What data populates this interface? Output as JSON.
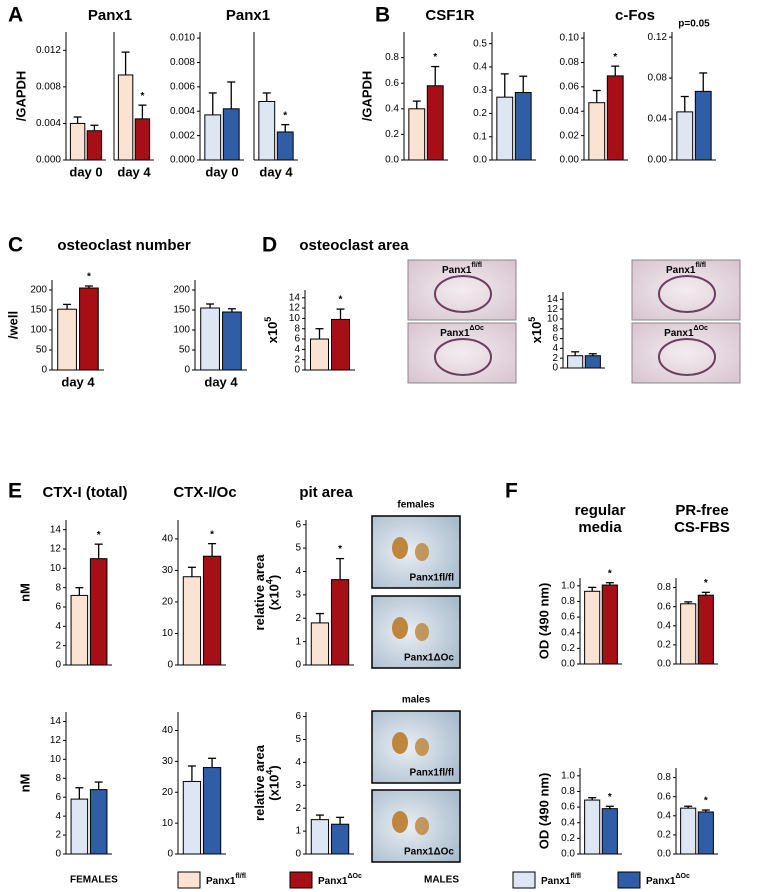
{
  "panel_labels": [
    "A",
    "B",
    "C",
    "D",
    "E",
    "F"
  ],
  "chart_data": [
    {
      "type": "bar",
      "title": "Panx1",
      "ylabel": "/GAPDH",
      "categories": [
        "day 0"
      ],
      "ylim": [
        0,
        0.014
      ],
      "yticks": [
        {
          "value": 0,
          "label": "0.000"
        },
        {
          "value": 0.004,
          "label": "0.004"
        },
        {
          "value": 0.008,
          "label": "0.008"
        },
        {
          "value": 0.012,
          "label": "0.012"
        }
      ],
      "series": [
        {
          "color": "#fbe3d3",
          "values": [
            0.004
          ],
          "errors": [
            0.0007
          ]
        },
        {
          "color": "#a50f15",
          "values": [
            0.0032
          ],
          "errors": [
            0.0006
          ]
        }
      ]
    },
    {
      "type": "bar",
      "categories": [
        "day 4"
      ],
      "ylim": [
        0,
        0.014
      ],
      "annotation": "*",
      "series": [
        {
          "color": "#fbe3d3",
          "values": [
            0.0093
          ],
          "errors": [
            0.0025
          ]
        },
        {
          "color": "#a50f15",
          "values": [
            0.0045
          ],
          "errors": [
            0.0015
          ]
        }
      ]
    },
    {
      "type": "bar",
      "title": "Panx1",
      "categories": [
        "day 0"
      ],
      "ylim": [
        0,
        0.0105
      ],
      "yticks": [
        {
          "value": 0,
          "label": "0.000"
        },
        {
          "value": 0.002,
          "label": "0.002"
        },
        {
          "value": 0.004,
          "label": "0.004"
        },
        {
          "value": 0.006,
          "label": "0.006"
        },
        {
          "value": 0.008,
          "label": "0.008"
        },
        {
          "value": 0.01,
          "label": "0.010"
        }
      ],
      "series": [
        {
          "color": "#dde6f2",
          "values": [
            0.0037
          ],
          "errors": [
            0.0018
          ]
        },
        {
          "color": "#2f5ea6",
          "values": [
            0.0042
          ],
          "errors": [
            0.0022
          ]
        }
      ]
    },
    {
      "type": "bar",
      "categories": [
        "day 4"
      ],
      "ylim": [
        0,
        0.0105
      ],
      "annotation": "*",
      "series": [
        {
          "color": "#dde6f2",
          "values": [
            0.0048
          ],
          "errors": [
            0.0007
          ]
        },
        {
          "color": "#2f5ea6",
          "values": [
            0.0023
          ],
          "errors": [
            0.0006
          ]
        }
      ]
    },
    {
      "type": "bar",
      "title": "CSF1R",
      "ylabel": "/GAPDH",
      "ylim": [
        0,
        1.0
      ],
      "yticks": [
        {
          "value": 0,
          "label": "0.0"
        },
        {
          "value": 0.2,
          "label": "0.2"
        },
        {
          "value": 0.4,
          "label": "0.4"
        },
        {
          "value": 0.6,
          "label": "0.6"
        },
        {
          "value": 0.8,
          "label": "0.8"
        }
      ],
      "annotation": "*",
      "series": [
        {
          "color": "#fbe3d3",
          "values": [
            0.4
          ],
          "errors": [
            0.06
          ]
        },
        {
          "color": "#a50f15",
          "values": [
            0.58
          ],
          "errors": [
            0.15
          ]
        }
      ]
    },
    {
      "type": "bar",
      "ylim": [
        0,
        0.55
      ],
      "yticks": [
        {
          "value": 0,
          "label": "0.0"
        },
        {
          "value": 0.1,
          "label": "0.1"
        },
        {
          "value": 0.2,
          "label": "0.2"
        },
        {
          "value": 0.3,
          "label": "0.3"
        },
        {
          "value": 0.4,
          "label": "0.4"
        },
        {
          "value": 0.5,
          "label": "0.5"
        }
      ],
      "series": [
        {
          "color": "#dde6f2",
          "values": [
            0.27
          ],
          "errors": [
            0.1
          ]
        },
        {
          "color": "#2f5ea6",
          "values": [
            0.29
          ],
          "errors": [
            0.07
          ]
        }
      ]
    },
    {
      "type": "bar",
      "title": "c-Fos",
      "ylim": [
        0,
        0.105
      ],
      "yticks": [
        {
          "value": 0,
          "label": "0.00"
        },
        {
          "value": 0.02,
          "label": "0.02"
        },
        {
          "value": 0.04,
          "label": "0.04"
        },
        {
          "value": 0.06,
          "label": "0.06"
        },
        {
          "value": 0.08,
          "label": "0.08"
        },
        {
          "value": 0.1,
          "label": "0.10"
        }
      ],
      "annotation": "*",
      "series": [
        {
          "color": "#fbe3d3",
          "values": [
            0.047
          ],
          "errors": [
            0.01
          ]
        },
        {
          "color": "#a50f15",
          "values": [
            0.069
          ],
          "errors": [
            0.008
          ]
        }
      ]
    },
    {
      "type": "bar",
      "ylim": [
        0,
        0.125
      ],
      "yticks": [
        {
          "value": 0,
          "label": "0.00"
        },
        {
          "value": 0.04,
          "label": "0.04"
        },
        {
          "value": 0.08,
          "label": "0.08"
        },
        {
          "value": 0.12,
          "label": "0.12"
        }
      ],
      "annotation": "p=0.05",
      "series": [
        {
          "color": "#dde6f2",
          "values": [
            0.047
          ],
          "errors": [
            0.015
          ]
        },
        {
          "color": "#2f5ea6",
          "values": [
            0.067
          ],
          "errors": [
            0.018
          ]
        }
      ]
    },
    {
      "type": "bar",
      "title": "osteoclast number",
      "ylabel": "/well",
      "categories": [
        "day 4"
      ],
      "ylim": [
        0,
        225
      ],
      "yticks": [
        0,
        50,
        100,
        150,
        200
      ],
      "annotation": "*",
      "series": [
        {
          "color": "#fbe3d3",
          "values": [
            152
          ],
          "errors": [
            12
          ]
        },
        {
          "color": "#a50f15",
          "values": [
            205
          ],
          "errors": [
            5
          ]
        }
      ]
    },
    {
      "type": "bar",
      "categories": [
        "day 4"
      ],
      "ylim": [
        0,
        225
      ],
      "yticks": [
        0,
        50,
        100,
        150,
        200
      ],
      "series": [
        {
          "color": "#dde6f2",
          "values": [
            155
          ],
          "errors": [
            10
          ]
        },
        {
          "color": "#2f5ea6",
          "values": [
            145
          ],
          "errors": [
            8
          ]
        }
      ]
    },
    {
      "type": "bar",
      "title": "osteoclast area",
      "ylabel": {
        "text": "x10",
        "sup": "5"
      },
      "ylim": [
        0,
        15.5
      ],
      "yticks": [
        0,
        2,
        4,
        6,
        8,
        10,
        12,
        14
      ],
      "annotation": "*",
      "series": [
        {
          "color": "#fbe3d3",
          "values": [
            6
          ],
          "errors": [
            2
          ]
        },
        {
          "color": "#a50f15",
          "values": [
            9.8
          ],
          "errors": [
            2
          ]
        }
      ]
    },
    {
      "type": "bar",
      "ylabel": {
        "text": "x10",
        "sup": "5"
      },
      "ylim": [
        0,
        15.5
      ],
      "yticks": [
        0,
        2,
        4,
        6,
        8,
        10,
        12,
        14
      ],
      "series": [
        {
          "color": "#dde6f2",
          "values": [
            2.5
          ],
          "errors": [
            0.8
          ]
        },
        {
          "color": "#2f5ea6",
          "values": [
            2.5
          ],
          "errors": [
            0.4
          ]
        }
      ]
    },
    {
      "type": "bar",
      "title": "CTX-I (total)",
      "ylabel": "nM",
      "ylim": [
        0,
        15
      ],
      "yticks": [
        0,
        2,
        4,
        6,
        8,
        10,
        12,
        14
      ],
      "annotation": "*",
      "series": [
        {
          "color": "#fbe3d3",
          "values": [
            7.2
          ],
          "errors": [
            0.8
          ]
        },
        {
          "color": "#a50f15",
          "values": [
            11
          ],
          "errors": [
            1.5
          ]
        }
      ]
    },
    {
      "type": "bar",
      "title": "CTX-I/Oc",
      "ylim": [
        0,
        46
      ],
      "yticks": [
        0,
        10,
        20,
        30,
        40
      ],
      "annotation": "*",
      "series": [
        {
          "color": "#fbe3d3",
          "values": [
            28
          ],
          "errors": [
            3
          ]
        },
        {
          "color": "#a50f15",
          "values": [
            34.5
          ],
          "errors": [
            4
          ]
        }
      ]
    },
    {
      "type": "bar",
      "title": "pit area",
      "ylabel": [
        "relative area",
        {
          "text": "(x10",
          "sup": "4",
          "tail": ")"
        }
      ],
      "ylim": [
        0,
        6.2
      ],
      "yticks": [
        0,
        1,
        2,
        3,
        4,
        5,
        6
      ],
      "annotation": "*",
      "series": [
        {
          "color": "#fbe3d3",
          "values": [
            1.8
          ],
          "errors": [
            0.4
          ]
        },
        {
          "color": "#a50f15",
          "values": [
            3.65
          ],
          "errors": [
            0.9
          ]
        }
      ]
    },
    {
      "type": "bar",
      "ylabel": "nM",
      "ylim": [
        0,
        15
      ],
      "yticks": [
        0,
        2,
        4,
        6,
        8,
        10,
        12,
        14
      ],
      "series": [
        {
          "color": "#dde6f2",
          "values": [
            5.8
          ],
          "errors": [
            1.2
          ]
        },
        {
          "color": "#2f5ea6",
          "values": [
            6.8
          ],
          "errors": [
            0.8
          ]
        }
      ]
    },
    {
      "type": "bar",
      "ylim": [
        0,
        46
      ],
      "yticks": [
        0,
        10,
        20,
        30,
        40
      ],
      "series": [
        {
          "color": "#dde6f2",
          "values": [
            23.5
          ],
          "errors": [
            5
          ]
        },
        {
          "color": "#2f5ea6",
          "values": [
            28
          ],
          "errors": [
            3
          ]
        }
      ]
    },
    {
      "type": "bar",
      "ylabel": [
        "relative area",
        {
          "text": "(x10",
          "sup": "4",
          "tail": ")"
        }
      ],
      "ylim": [
        0,
        6.2
      ],
      "yticks": [
        0,
        1,
        2,
        3,
        4,
        5,
        6
      ],
      "series": [
        {
          "color": "#dde6f2",
          "values": [
            1.5
          ],
          "errors": [
            0.2
          ]
        },
        {
          "color": "#2f5ea6",
          "values": [
            1.3
          ],
          "errors": [
            0.3
          ]
        }
      ]
    },
    {
      "type": "bar",
      "title": [
        "regular",
        "media"
      ],
      "ylabel": "OD (490 nm)",
      "ylim": [
        0,
        1.1
      ],
      "yticks": [
        {
          "value": 0,
          "label": "0.0"
        },
        {
          "value": 0.2,
          "label": "0.2"
        },
        {
          "value": 0.4,
          "label": "0.4"
        },
        {
          "value": 0.6,
          "label": "0.6"
        },
        {
          "value": 0.8,
          "label": "0.8"
        },
        {
          "value": 1,
          "label": "1.0"
        }
      ],
      "annotation": "*",
      "series": [
        {
          "color": "#fbe3d3",
          "values": [
            0.93
          ],
          "errors": [
            0.05
          ]
        },
        {
          "color": "#a50f15",
          "values": [
            1.01
          ],
          "errors": [
            0.03
          ]
        }
      ]
    },
    {
      "type": "bar",
      "title": [
        "PR-free",
        "CS-FBS"
      ],
      "ylim": [
        0,
        0.9
      ],
      "yticks": [
        {
          "value": 0,
          "label": "0.0"
        },
        {
          "value": 0.2,
          "label": "0.2"
        },
        {
          "value": 0.4,
          "label": "0.4"
        },
        {
          "value": 0.6,
          "label": "0.6"
        },
        {
          "value": 0.8,
          "label": "0.8"
        }
      ],
      "annotation": "*",
      "series": [
        {
          "color": "#fbe3d3",
          "values": [
            0.63
          ],
          "errors": [
            0.02
          ]
        },
        {
          "color": "#a50f15",
          "values": [
            0.72
          ],
          "errors": [
            0.03
          ]
        }
      ]
    },
    {
      "type": "bar",
      "ylabel": "OD (490 nm)",
      "ylim": [
        0,
        1.1
      ],
      "yticks": [
        {
          "value": 0,
          "label": "0.0"
        },
        {
          "value": 0.2,
          "label": "0.2"
        },
        {
          "value": 0.4,
          "label": "0.4"
        },
        {
          "value": 0.6,
          "label": "0.6"
        },
        {
          "value": 0.8,
          "label": "0.8"
        },
        {
          "value": 1,
          "label": "1.0"
        }
      ],
      "annotation": "*",
      "series": [
        {
          "color": "#dde6f2",
          "values": [
            0.69
          ],
          "errors": [
            0.03
          ]
        },
        {
          "color": "#2f5ea6",
          "values": [
            0.58
          ],
          "errors": [
            0.03
          ]
        }
      ]
    },
    {
      "type": "bar",
      "ylim": [
        0,
        0.9
      ],
      "yticks": [
        {
          "value": 0,
          "label": "0.0"
        },
        {
          "value": 0.2,
          "label": "0.2"
        },
        {
          "value": 0.4,
          "label": "0.4"
        },
        {
          "value": 0.6,
          "label": "0.6"
        },
        {
          "value": 0.8,
          "label": "0.8"
        }
      ],
      "annotation": "*",
      "series": [
        {
          "color": "#dde6f2",
          "values": [
            0.48
          ],
          "errors": [
            0.02
          ]
        },
        {
          "color": "#2f5ea6",
          "values": [
            0.44
          ],
          "errors": [
            0.02
          ]
        }
      ]
    }
  ],
  "micrographs": {
    "osteoclast_labels": [
      {
        "text": "Panx1",
        "sup": "fl/fl"
      },
      {
        "text": "Panx1",
        "sup": "ΔOc"
      }
    ],
    "pit_headers": [
      "females",
      "males"
    ],
    "pit_labels": [
      "Panx1fl/fl",
      "Panx1ΔOc"
    ]
  },
  "legend": {
    "females": "FEMALES",
    "males": "MALES",
    "entries": [
      {
        "text": "Panx1",
        "sup": "fl/fl",
        "color": "#fbe3d3"
      },
      {
        "text": "Panx1",
        "sup": "ΔOc",
        "color": "#a50f15"
      },
      {
        "text": "Panx1",
        "sup": "fl/fl",
        "color": "#dde6f2"
      },
      {
        "text": "Panx1",
        "sup": "ΔOc",
        "color": "#2f5ea6"
      }
    ]
  }
}
